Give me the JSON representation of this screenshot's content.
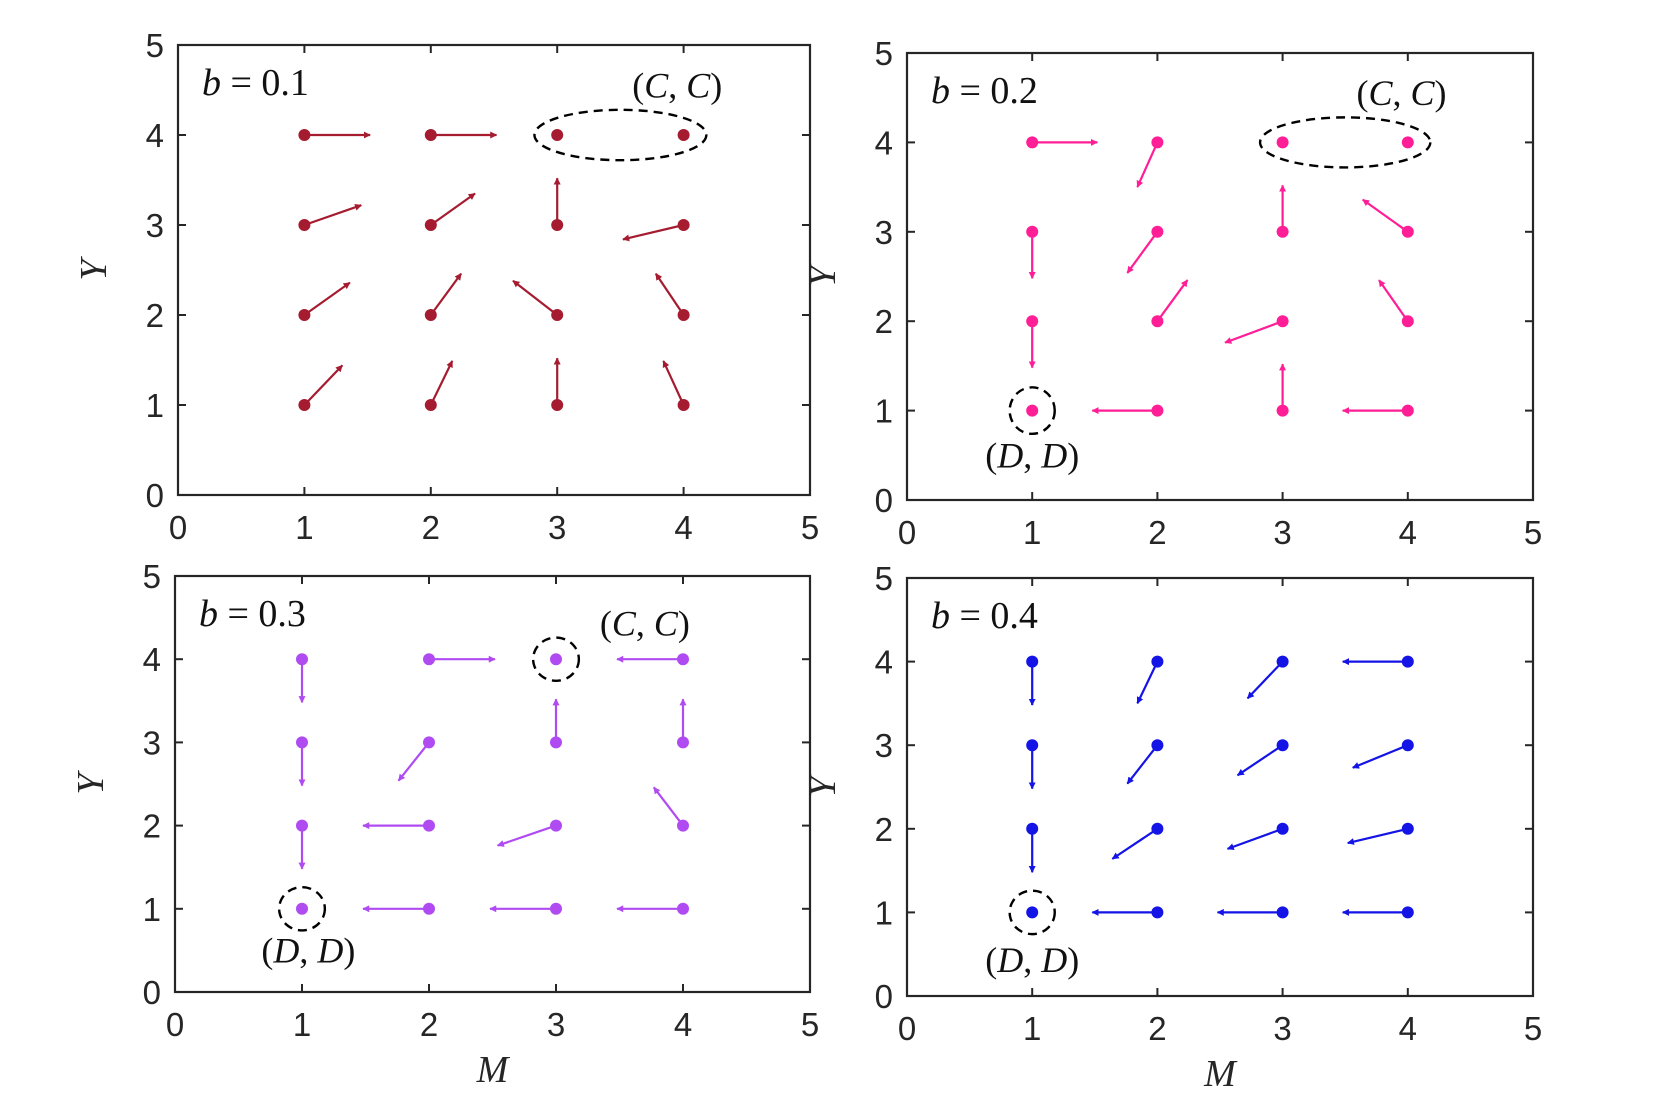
{
  "chart_data": [
    {
      "type": "scatter",
      "panel_label": "b = 0.1",
      "xlabel": "",
      "ylabel": "Y",
      "xlim": [
        0,
        5
      ],
      "ylim": [
        0,
        5
      ],
      "xticks": [
        "0",
        "1",
        "2",
        "3",
        "4",
        "5"
      ],
      "yticks": [
        "0",
        "1",
        "2",
        "3",
        "4",
        "5"
      ],
      "color": "#a51c30",
      "points": [
        {
          "x": 1,
          "y": 4,
          "dx": 0.52,
          "dy": 0.0
        },
        {
          "x": 2,
          "y": 4,
          "dx": 0.52,
          "dy": 0.0
        },
        {
          "x": 3,
          "y": 4,
          "dx": 0.0,
          "dy": 0.0
        },
        {
          "x": 4,
          "y": 4,
          "dx": 0.0,
          "dy": 0.0
        },
        {
          "x": 1,
          "y": 3,
          "dx": 0.45,
          "dy": 0.22
        },
        {
          "x": 2,
          "y": 3,
          "dx": 0.35,
          "dy": 0.35
        },
        {
          "x": 3,
          "y": 3,
          "dx": 0.0,
          "dy": 0.52
        },
        {
          "x": 4,
          "y": 3,
          "dx": -0.48,
          "dy": -0.16
        },
        {
          "x": 1,
          "y": 2,
          "dx": 0.36,
          "dy": 0.36
        },
        {
          "x": 2,
          "y": 2,
          "dx": 0.24,
          "dy": 0.46
        },
        {
          "x": 3,
          "y": 2,
          "dx": -0.35,
          "dy": 0.38
        },
        {
          "x": 4,
          "y": 2,
          "dx": -0.22,
          "dy": 0.46
        },
        {
          "x": 1,
          "y": 1,
          "dx": 0.3,
          "dy": 0.44
        },
        {
          "x": 2,
          "y": 1,
          "dx": 0.17,
          "dy": 0.49
        },
        {
          "x": 3,
          "y": 1,
          "dx": 0.0,
          "dy": 0.52
        },
        {
          "x": 4,
          "y": 1,
          "dx": -0.16,
          "dy": 0.49
        }
      ],
      "markers": [
        {
          "shape": "ellipse",
          "cx": 3.5,
          "cy": 4,
          "rx": 0.68,
          "ry": 0.28,
          "label": "(C,C)",
          "label_x": 3.95,
          "label_y": 4.55
        }
      ]
    },
    {
      "type": "scatter",
      "panel_label": "b = 0.2",
      "xlabel": "",
      "ylabel": "Y",
      "xlim": [
        0,
        5
      ],
      "ylim": [
        0,
        5
      ],
      "xticks": [
        "0",
        "1",
        "2",
        "3",
        "4",
        "5"
      ],
      "yticks": [
        "0",
        "1",
        "2",
        "3",
        "4",
        "5"
      ],
      "color": "#ff1e96",
      "points": [
        {
          "x": 1,
          "y": 4,
          "dx": 0.52,
          "dy": 0.0
        },
        {
          "x": 2,
          "y": 4,
          "dx": -0.16,
          "dy": -0.5
        },
        {
          "x": 3,
          "y": 4,
          "dx": 0.0,
          "dy": 0.0
        },
        {
          "x": 4,
          "y": 4,
          "dx": 0.0,
          "dy": 0.0
        },
        {
          "x": 1,
          "y": 3,
          "dx": 0.0,
          "dy": -0.52
        },
        {
          "x": 2,
          "y": 3,
          "dx": -0.24,
          "dy": -0.46
        },
        {
          "x": 3,
          "y": 3,
          "dx": 0.0,
          "dy": 0.52
        },
        {
          "x": 4,
          "y": 3,
          "dx": -0.36,
          "dy": 0.36
        },
        {
          "x": 1,
          "y": 2,
          "dx": 0.0,
          "dy": -0.52
        },
        {
          "x": 2,
          "y": 2,
          "dx": 0.24,
          "dy": 0.46
        },
        {
          "x": 3,
          "y": 2,
          "dx": -0.46,
          "dy": -0.24
        },
        {
          "x": 4,
          "y": 2,
          "dx": -0.23,
          "dy": 0.46
        },
        {
          "x": 1,
          "y": 1,
          "dx": 0.0,
          "dy": 0.0
        },
        {
          "x": 2,
          "y": 1,
          "dx": -0.52,
          "dy": 0.0
        },
        {
          "x": 3,
          "y": 1,
          "dx": 0.0,
          "dy": 0.52
        },
        {
          "x": 4,
          "y": 1,
          "dx": -0.52,
          "dy": 0.0
        }
      ],
      "markers": [
        {
          "shape": "ellipse",
          "cx": 3.5,
          "cy": 4,
          "rx": 0.68,
          "ry": 0.28,
          "label": "(C,C)",
          "label_x": 3.95,
          "label_y": 4.55
        },
        {
          "shape": "circle",
          "cx": 1,
          "cy": 1,
          "rx": 0.18,
          "ry": 0.26,
          "label": "(D,D)",
          "label_x": 1.0,
          "label_y": 0.5
        }
      ]
    },
    {
      "type": "scatter",
      "panel_label": "b = 0.3",
      "xlabel": "M",
      "ylabel": "Y",
      "xlim": [
        0,
        5
      ],
      "ylim": [
        0,
        5
      ],
      "xticks": [
        "0",
        "1",
        "2",
        "3",
        "4",
        "5"
      ],
      "yticks": [
        "0",
        "1",
        "2",
        "3",
        "4",
        "5"
      ],
      "color": "#b04bf2",
      "points": [
        {
          "x": 1,
          "y": 4,
          "dx": 0.0,
          "dy": -0.52
        },
        {
          "x": 2,
          "y": 4,
          "dx": 0.52,
          "dy": 0.0
        },
        {
          "x": 3,
          "y": 4,
          "dx": 0.0,
          "dy": 0.0
        },
        {
          "x": 4,
          "y": 4,
          "dx": -0.52,
          "dy": 0.0
        },
        {
          "x": 1,
          "y": 3,
          "dx": 0.0,
          "dy": -0.52
        },
        {
          "x": 2,
          "y": 3,
          "dx": -0.24,
          "dy": -0.46
        },
        {
          "x": 3,
          "y": 3,
          "dx": 0.0,
          "dy": 0.52
        },
        {
          "x": 4,
          "y": 3,
          "dx": 0.0,
          "dy": 0.52
        },
        {
          "x": 1,
          "y": 2,
          "dx": 0.0,
          "dy": -0.52
        },
        {
          "x": 2,
          "y": 2,
          "dx": -0.52,
          "dy": 0.0
        },
        {
          "x": 3,
          "y": 2,
          "dx": -0.46,
          "dy": -0.24
        },
        {
          "x": 4,
          "y": 2,
          "dx": -0.23,
          "dy": 0.46
        },
        {
          "x": 1,
          "y": 1,
          "dx": 0.0,
          "dy": 0.0
        },
        {
          "x": 2,
          "y": 1,
          "dx": -0.52,
          "dy": 0.0
        },
        {
          "x": 3,
          "y": 1,
          "dx": -0.52,
          "dy": 0.0
        },
        {
          "x": 4,
          "y": 1,
          "dx": -0.52,
          "dy": 0.0
        }
      ],
      "markers": [
        {
          "shape": "circle",
          "cx": 3,
          "cy": 4,
          "rx": 0.18,
          "ry": 0.26,
          "label": "(C,C)",
          "label_x": 3.7,
          "label_y": 4.43
        },
        {
          "shape": "circle",
          "cx": 1,
          "cy": 1,
          "rx": 0.18,
          "ry": 0.26,
          "label": "(D,D)",
          "label_x": 1.05,
          "label_y": 0.5
        }
      ]
    },
    {
      "type": "scatter",
      "panel_label": "b = 0.4",
      "xlabel": "M",
      "ylabel": "Y",
      "xlim": [
        0,
        5
      ],
      "ylim": [
        0,
        5
      ],
      "xticks": [
        "0",
        "1",
        "2",
        "3",
        "4",
        "5"
      ],
      "yticks": [
        "0",
        "1",
        "2",
        "3",
        "4",
        "5"
      ],
      "color": "#1414e6",
      "points": [
        {
          "x": 1,
          "y": 4,
          "dx": 0.0,
          "dy": -0.52
        },
        {
          "x": 2,
          "y": 4,
          "dx": -0.16,
          "dy": -0.5
        },
        {
          "x": 3,
          "y": 4,
          "dx": -0.28,
          "dy": -0.44
        },
        {
          "x": 4,
          "y": 4,
          "dx": -0.52,
          "dy": 0.0
        },
        {
          "x": 1,
          "y": 3,
          "dx": 0.0,
          "dy": -0.52
        },
        {
          "x": 2,
          "y": 3,
          "dx": -0.24,
          "dy": -0.46
        },
        {
          "x": 3,
          "y": 3,
          "dx": -0.36,
          "dy": -0.36
        },
        {
          "x": 4,
          "y": 3,
          "dx": -0.44,
          "dy": -0.27
        },
        {
          "x": 1,
          "y": 2,
          "dx": 0.0,
          "dy": -0.52
        },
        {
          "x": 2,
          "y": 2,
          "dx": -0.36,
          "dy": -0.36
        },
        {
          "x": 3,
          "y": 2,
          "dx": -0.44,
          "dy": -0.24
        },
        {
          "x": 4,
          "y": 2,
          "dx": -0.48,
          "dy": -0.17
        },
        {
          "x": 1,
          "y": 1,
          "dx": 0.0,
          "dy": 0.0
        },
        {
          "x": 2,
          "y": 1,
          "dx": -0.52,
          "dy": 0.0
        },
        {
          "x": 3,
          "y": 1,
          "dx": -0.52,
          "dy": 0.0
        },
        {
          "x": 4,
          "y": 1,
          "dx": -0.52,
          "dy": 0.0
        }
      ],
      "markers": [
        {
          "shape": "circle",
          "cx": 1,
          "cy": 1,
          "rx": 0.18,
          "ry": 0.26,
          "label": "(D,D)",
          "label_x": 1.0,
          "label_y": 0.43
        }
      ]
    }
  ]
}
